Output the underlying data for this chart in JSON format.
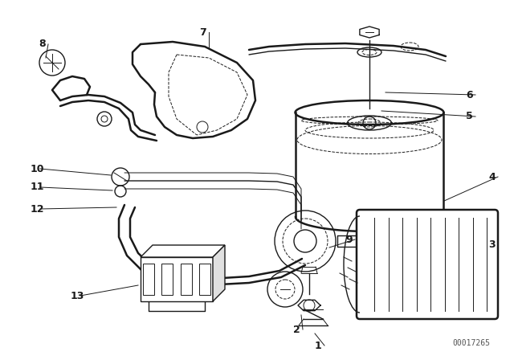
{
  "background_color": "#ffffff",
  "line_color": "#1a1a1a",
  "watermark": "00017265",
  "lw": 1.2,
  "lw_thin": 0.7,
  "lw_thick": 1.8,
  "lw_med": 1.0
}
